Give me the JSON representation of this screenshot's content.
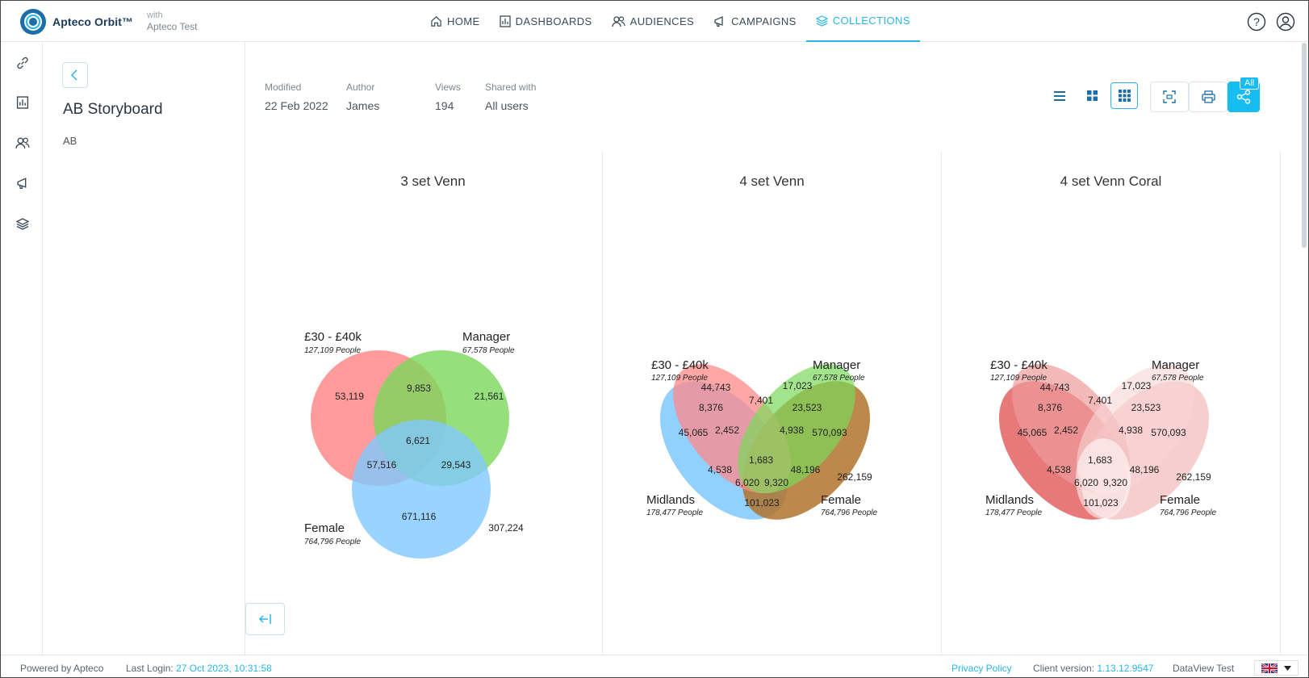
{
  "app": {
    "brand": "Apteco Orbit™",
    "with_label": "with",
    "tenant": "Apteco Test"
  },
  "nav": [
    {
      "label": "HOME",
      "icon": "home-icon"
    },
    {
      "label": "DASHBOARDS",
      "icon": "dashboard-icon"
    },
    {
      "label": "AUDIENCES",
      "icon": "audiences-icon"
    },
    {
      "label": "CAMPAIGNS",
      "icon": "campaigns-icon"
    },
    {
      "label": "COLLECTIONS",
      "icon": "collections-icon",
      "active": true
    }
  ],
  "storyboard": {
    "title": "AB Storyboard",
    "description": "AB"
  },
  "meta": {
    "modified_label": "Modified",
    "modified": "22 Feb 2022",
    "author_label": "Author",
    "author": "James",
    "views_label": "Views",
    "views": "194",
    "shared_label": "Shared with",
    "shared": "All users"
  },
  "share_badge": "All",
  "chart_data": [
    {
      "type": "venn",
      "title": "3 set Venn",
      "sets": [
        {
          "name": "£30 - £40k",
          "size": "127,109 People",
          "color": "#ff8a8a"
        },
        {
          "name": "Manager",
          "size": "67,578 People",
          "color": "#8ee26f"
        },
        {
          "name": "Female",
          "size": "764,796 People",
          "color": "#8fd2ff"
        }
      ],
      "regions": {
        "a": "53,119",
        "b": "21,561",
        "c": "671,116",
        "ab": "9,853",
        "ac": "57,516",
        "bc": "29,543",
        "abc": "6,621"
      },
      "outside": "307,224"
    },
    {
      "type": "venn",
      "title": "4 set Venn",
      "sets": [
        {
          "name": "£30 - £40k",
          "size": "127,109 People",
          "color": "#ff8a8a"
        },
        {
          "name": "Manager",
          "size": "67,578 People",
          "color": "#8ee26f"
        },
        {
          "name": "Midlands",
          "size": "178,477 People",
          "color": "#8fd2ff"
        },
        {
          "name": "Female",
          "size": "764,796 People",
          "color": "#c0853a"
        }
      ],
      "regions": [
        "44,743",
        "17,023",
        "7,401",
        "8,376",
        "23,523",
        "45,065",
        "2,452",
        "4,938",
        "570,093",
        "1,683",
        "4,538",
        "48,196",
        "6,020",
        "9,320",
        "101,023"
      ],
      "outside": "262,159"
    },
    {
      "type": "venn",
      "title": "4 set Venn Coral",
      "sets": [
        {
          "name": "£30 - £40k",
          "size": "127,109 People"
        },
        {
          "name": "Manager",
          "size": "67,578 People"
        },
        {
          "name": "Midlands",
          "size": "178,477 People"
        },
        {
          "name": "Female",
          "size": "764,796 People"
        }
      ],
      "regions": [
        "44,743",
        "17,023",
        "7,401",
        "8,376",
        "23,523",
        "45,065",
        "2,452",
        "4,938",
        "570,093",
        "1,683",
        "4,538",
        "48,196",
        "6,020",
        "9,320",
        "101,023"
      ],
      "outside": "262,159",
      "palette": "coral"
    }
  ],
  "footer": {
    "powered": "Powered by Apteco",
    "last_login_label": "Last Login:",
    "last_login": "27 Oct 2023, 10:31:58",
    "privacy": "Privacy Policy",
    "client_version_label": "Client version:",
    "client_version": "1.13.12.9547",
    "dataview": "DataView Test"
  }
}
